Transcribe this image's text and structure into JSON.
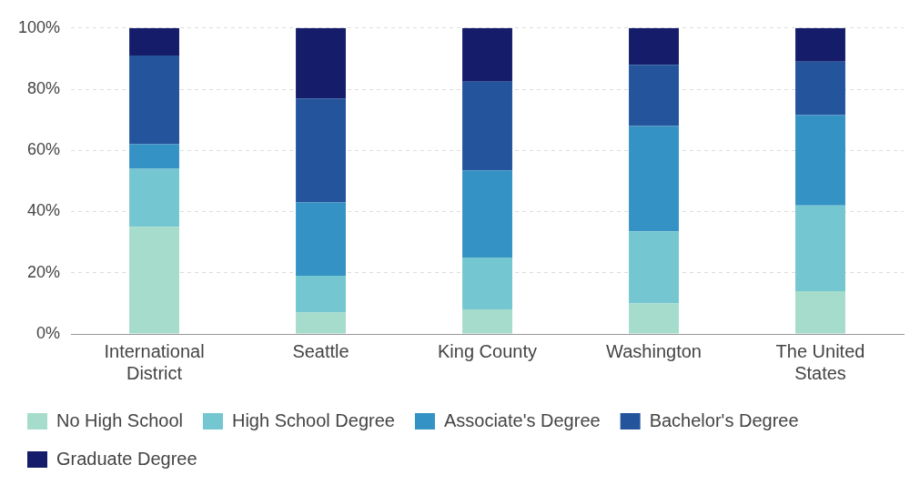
{
  "chart_data": {
    "type": "bar",
    "stacked": true,
    "categories": [
      "International District",
      "Seattle",
      "King County",
      "Washington",
      "The United States"
    ],
    "series": [
      {
        "name": "No High School",
        "color": "#a6dccb",
        "values": [
          35,
          7,
          8,
          10,
          14
        ]
      },
      {
        "name": "High School Degree",
        "color": "#74c6d0",
        "values": [
          19,
          12,
          17,
          23.5,
          28
        ]
      },
      {
        "name": "Associate's Degree",
        "color": "#3592c4",
        "values": [
          8,
          24,
          28.5,
          34.5,
          29.5
        ]
      },
      {
        "name": "Bachelor's Degree",
        "color": "#23549c",
        "values": [
          29,
          34,
          29,
          20,
          17.5
        ]
      },
      {
        "name": "Graduate Degree",
        "color": "#151d6b",
        "values": [
          9,
          23,
          17.5,
          12,
          11
        ]
      }
    ],
    "ylim": [
      0,
      100
    ],
    "yticks": [
      {
        "value": 0,
        "label": "0%"
      },
      {
        "value": 20,
        "label": "20%"
      },
      {
        "value": 40,
        "label": "40%"
      },
      {
        "value": 60,
        "label": "60%"
      },
      {
        "value": 80,
        "label": "80%"
      },
      {
        "value": 100,
        "label": "100%"
      }
    ],
    "grid": "y",
    "legend": "bottom"
  }
}
